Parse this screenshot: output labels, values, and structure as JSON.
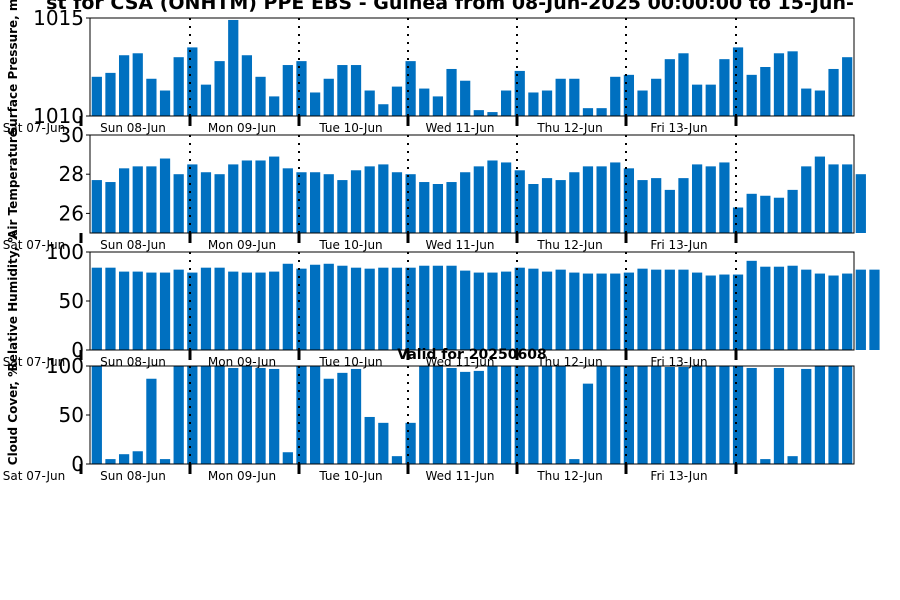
{
  "title": "st for CSA (ONHTM) PPE EBS  - Guinea from 08-Jun-2025 00:00:00 to 15-Jun-",
  "colors": {
    "bar": "#0070c0",
    "axis": "#000000",
    "background": "#ffffff"
  },
  "chart_data": [
    {
      "type": "bar",
      "ylabel": "Surface Pressure, m",
      "ylim": [
        1010,
        1015
      ],
      "yticks": [
        "1010",
        "1015"
      ],
      "xticks": [
        "Sat 07-Jun",
        "Sun 08-Jun",
        "Mon 09-Jun",
        "Tue 10-Jun",
        "Wed 11-Jun",
        "Thu 12-Jun",
        "Fri 13-Jun"
      ],
      "values": [
        1012.0,
        1012.2,
        1013.1,
        1013.2,
        1011.9,
        1011.3,
        1013.0,
        1013.5,
        1011.6,
        1012.8,
        1014.9,
        1013.1,
        1012.0,
        1011.0,
        1012.6,
        1012.8,
        1011.2,
        1011.9,
        1012.6,
        1012.6,
        1011.3,
        1010.6,
        1011.5,
        1012.8,
        1011.4,
        1011.0,
        1012.4,
        1011.8,
        1010.3,
        1010.2,
        1011.3,
        1012.3,
        1011.2,
        1011.3,
        1011.9,
        1011.9,
        1010.4,
        1010.4,
        1012.0,
        1012.1,
        1011.3,
        1011.9,
        1012.9,
        1013.2,
        1011.6,
        1011.6,
        1012.9,
        1013.5,
        1012.1,
        1012.5,
        1013.2,
        1013.3,
        1011.4,
        1011.3,
        1012.4,
        1013.0
      ]
    },
    {
      "type": "bar",
      "ylabel": "Air Temperature",
      "ylim": [
        25,
        30
      ],
      "yticks": [
        "26",
        "28",
        "30"
      ],
      "xticks": [
        "Sat 07-Jun",
        "Sun 08-Jun",
        "Mon 09-Jun",
        "Tue 10-Jun",
        "Wed 11-Jun",
        "Thu 12-Jun",
        "Fri 13-Jun"
      ],
      "values": [
        27.7,
        27.6,
        28.3,
        28.4,
        28.4,
        28.8,
        28.0,
        28.5,
        28.1,
        28.0,
        28.5,
        28.7,
        28.7,
        28.9,
        28.3,
        28.1,
        28.1,
        28.0,
        27.7,
        28.2,
        28.4,
        28.5,
        28.1,
        28.0,
        27.6,
        27.5,
        27.6,
        28.1,
        28.4,
        28.7,
        28.6,
        28.2,
        27.5,
        27.8,
        27.7,
        28.1,
        28.4,
        28.4,
        28.6,
        28.3,
        27.7,
        27.8,
        27.2,
        27.8,
        28.5,
        28.4,
        28.6,
        26.3,
        27.0,
        26.9,
        26.8,
        27.2,
        28.4,
        28.9,
        28.5,
        28.5,
        28.0
      ]
    },
    {
      "type": "bar",
      "ylabel": "Relative Humidity, %",
      "ylim": [
        0,
        100
      ],
      "yticks": [
        "0",
        "50",
        "100"
      ],
      "xticks": [
        "Sat 07-Jun",
        "Sun 08-Jun",
        "Mon 09-Jun",
        "Tue 10-Jun",
        "Wed 11-Jun",
        "Thu 12-Jun",
        "Fri 13-Jun"
      ],
      "values": [
        84,
        84,
        80,
        80,
        79,
        79,
        82,
        79,
        84,
        84,
        80,
        79,
        79,
        80,
        88,
        83,
        87,
        88,
        86,
        84,
        83,
        84,
        84,
        84,
        86,
        86,
        86,
        81,
        79,
        79,
        80,
        84,
        83,
        80,
        82,
        79,
        78,
        78,
        78,
        79,
        83,
        82,
        82,
        82,
        79,
        76,
        77,
        77,
        91,
        85,
        85,
        86,
        82,
        78,
        76,
        78,
        82,
        82
      ]
    },
    {
      "type": "bar",
      "title": "Valid for 20250608",
      "ylabel": "Cloud Cover, %",
      "ylim": [
        0,
        100
      ],
      "yticks": [
        "0",
        "50",
        "100"
      ],
      "xticks": [
        "Sat 07-Jun",
        "Sun 08-Jun",
        "Mon 09-Jun",
        "Tue 10-Jun",
        "Wed 11-Jun",
        "Thu 12-Jun",
        "Fri 13-Jun"
      ],
      "values": [
        100,
        5,
        10,
        13,
        87,
        5,
        100,
        100,
        100,
        100,
        98,
        100,
        98,
        97,
        12,
        100,
        100,
        87,
        93,
        97,
        48,
        42,
        8,
        42,
        100,
        100,
        98,
        94,
        95,
        100,
        100,
        100,
        100,
        100,
        100,
        5,
        82,
        100,
        100,
        100,
        100,
        100,
        99,
        99,
        100,
        100,
        100,
        100,
        98,
        5,
        98,
        8,
        97,
        100,
        100,
        100
      ]
    }
  ]
}
